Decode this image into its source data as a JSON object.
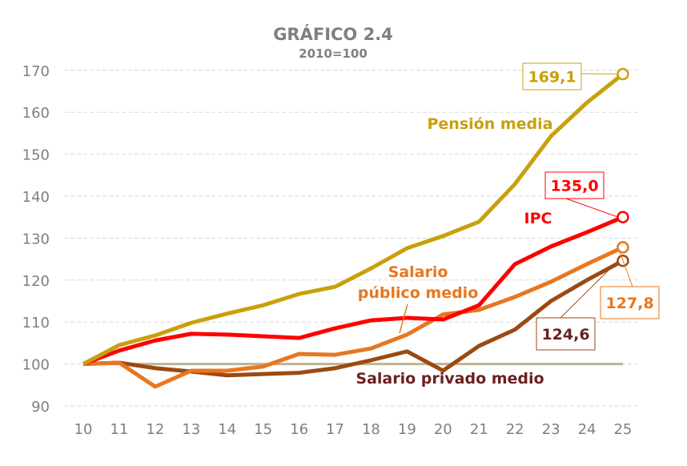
{
  "chart_data": {
    "type": "line",
    "title": "GRÁFICO 2.4",
    "subtitle": "2010=100",
    "x": [
      "10",
      "11",
      "12",
      "13",
      "14",
      "15",
      "16",
      "17",
      "18",
      "19",
      "20",
      "21",
      "22",
      "23",
      "24",
      "25"
    ],
    "ylim": [
      90,
      170
    ],
    "yticks": [
      90,
      100,
      110,
      120,
      130,
      140,
      150,
      160,
      170
    ],
    "grid": true,
    "reference_line": 100,
    "series": [
      {
        "name": "Pensión media",
        "color": "#C9A00C",
        "values": [
          100,
          104.5,
          106.8,
          109.8,
          112,
          114,
          116.7,
          118.4,
          122.8,
          127.6,
          130.5,
          133.9,
          142.9,
          154.3,
          162.3,
          169.1
        ],
        "end_label": "169,1"
      },
      {
        "name": "IPC",
        "color": "#FF0000",
        "values": [
          100,
          103.2,
          105.6,
          107.2,
          107,
          106.6,
          106.2,
          108.5,
          110.4,
          111,
          110.6,
          114,
          123.8,
          128,
          131.4,
          135.0
        ],
        "end_label": "135,0"
      },
      {
        "name": "Salario público medio",
        "label_lines": [
          "Salario",
          "público medio"
        ],
        "color": "#E8771E",
        "values": [
          100,
          100.3,
          94.6,
          98.4,
          98.4,
          99.4,
          102.4,
          102.2,
          103.7,
          107,
          111.8,
          112.9,
          116,
          119.6,
          123.8,
          127.8
        ],
        "end_label": "127,8"
      },
      {
        "name": "Salario privado medio",
        "color": "#9A4A12",
        "label_color": "#6B2020",
        "values": [
          100,
          100.3,
          99,
          98.2,
          97.3,
          97.6,
          97.9,
          99,
          100.9,
          103,
          98.4,
          104.3,
          108.2,
          115,
          120,
          124.6
        ],
        "end_label": "124,6"
      }
    ],
    "colors": {
      "reference": "#BDB591",
      "grid": "#D9D9D9",
      "axis_text": "#7F7F7F"
    }
  }
}
